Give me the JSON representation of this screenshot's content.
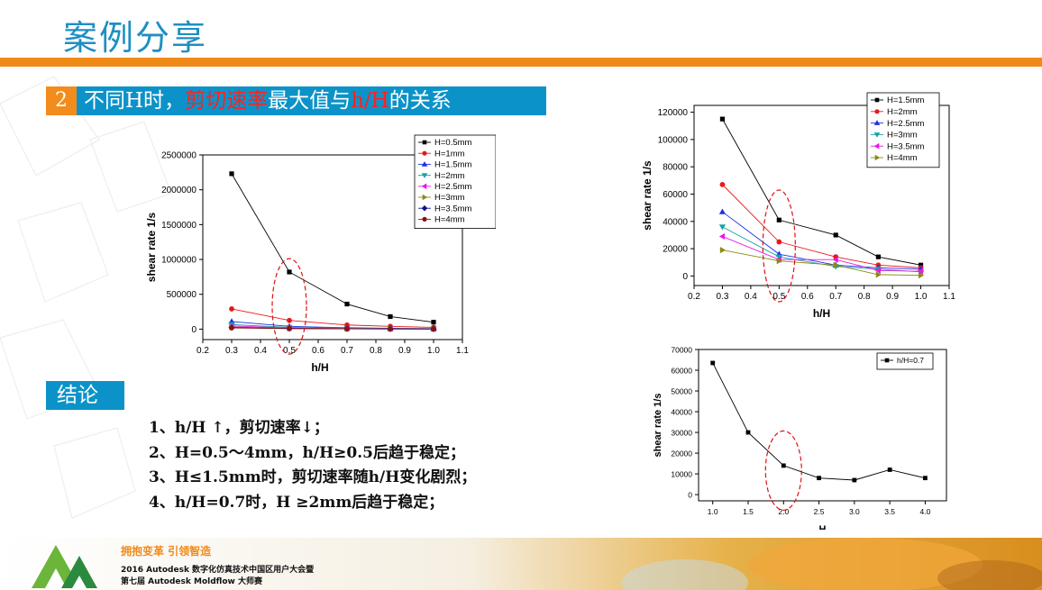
{
  "slide": {
    "title": "案例分享",
    "section_number": "2",
    "section_title_before": "不同H时，",
    "section_title_highlight": "剪切速率",
    "section_title_middle": "最大值与",
    "section_title_highlight2": "h/H",
    "section_title_after": "的关系",
    "conclusion_header": "结论",
    "conclusions": [
      "1、h/H ↑，剪切速率↓；",
      "2、H=0.5～4mm，h/H≥0.5后趋于稳定；",
      "3、H≤1.5mm时，剪切速率随h/H变化剧烈；",
      "4、h/H=0.7时，H ≥2mm后趋于稳定；"
    ],
    "footer_slogan": "拥抱变革  引领智造",
    "footer_line1": "2016 Autodesk 数字化仿真技术中国区用户大会暨",
    "footer_line2": "第七届 Autodesk Moldflow 大师赛",
    "accent_color": "#f08a17",
    "header_blue": "#0b93c9",
    "title_blue": "#1e8fc3"
  },
  "chart_data": [
    {
      "type": "line",
      "xlabel": "h/H",
      "ylabel": "shear rate  1/s",
      "xlim": [
        0.2,
        1.1
      ],
      "ylim": [
        -150000,
        2500000
      ],
      "xticks": [
        "0.2",
        "0.3",
        "0.4",
        "0.5",
        "0.6",
        "0.7",
        "0.8",
        "0.9",
        "1.0",
        "1.1"
      ],
      "yticks": [
        "0",
        "500000",
        "1000000",
        "1500000",
        "2000000",
        "2500000"
      ],
      "x": [
        0.3,
        0.5,
        0.7,
        0.85,
        1.0
      ],
      "legend_position": "top-right",
      "highlight_x": 0.5,
      "series": [
        {
          "name": "H=0.5mm",
          "color": "#000000",
          "marker": "square",
          "values": [
            2230000,
            820000,
            360000,
            180000,
            100000
          ]
        },
        {
          "name": "H=1mm",
          "color": "#e8191a",
          "marker": "circle",
          "values": [
            290000,
            125000,
            60000,
            40000,
            25000
          ]
        },
        {
          "name": "H=1.5mm",
          "color": "#1f2fe0",
          "marker": "triangle-up",
          "values": [
            110000,
            40000,
            20000,
            12000,
            8000
          ]
        },
        {
          "name": "H=2mm",
          "color": "#17a3a3",
          "marker": "triangle-down",
          "values": [
            65000,
            25000,
            12000,
            8000,
            5000
          ]
        },
        {
          "name": "H=2.5mm",
          "color": "#e61ae6",
          "marker": "triangle-left",
          "values": [
            45000,
            17000,
            9000,
            6000,
            4000
          ]
        },
        {
          "name": "H=3mm",
          "color": "#8a8a17",
          "marker": "triangle-right",
          "values": [
            30000,
            13000,
            7000,
            4000,
            3000
          ]
        },
        {
          "name": "H=3.5mm",
          "color": "#12128a",
          "marker": "diamond",
          "values": [
            22000,
            10000,
            5000,
            3000,
            2000
          ]
        },
        {
          "name": "H=4mm",
          "color": "#8a1212",
          "marker": "circle",
          "values": [
            18000,
            8000,
            4000,
            2500,
            1500
          ]
        }
      ]
    },
    {
      "type": "line",
      "xlabel": "h/H",
      "ylabel": "shear rate  1/s",
      "xlim": [
        0.2,
        1.1
      ],
      "ylim": [
        -7000,
        125000
      ],
      "xticks": [
        "0.2",
        "0.3",
        "0.4",
        "0.5",
        "0.6",
        "0.7",
        "0.8",
        "0.9",
        "1.0",
        "1.1"
      ],
      "yticks": [
        "0",
        "20000",
        "40000",
        "60000",
        "80000",
        "100000",
        "120000"
      ],
      "x": [
        0.3,
        0.5,
        0.7,
        0.85,
        1.0
      ],
      "legend_position": "top-right",
      "highlight_x": 0.5,
      "series": [
        {
          "name": "H=1.5mm",
          "color": "#000000",
          "marker": "square",
          "values": [
            115000,
            41000,
            30000,
            14000,
            8000
          ]
        },
        {
          "name": "H=2mm",
          "color": "#e8191a",
          "marker": "circle",
          "values": [
            67000,
            25000,
            14000,
            8000,
            6000
          ]
        },
        {
          "name": "H=2.5mm",
          "color": "#1f2fe0",
          "marker": "triangle-up",
          "values": [
            47000,
            16000,
            8000,
            6000,
            5000
          ]
        },
        {
          "name": "H=3mm",
          "color": "#17a3a3",
          "marker": "triangle-down",
          "values": [
            36000,
            14000,
            7000,
            5000,
            3000
          ]
        },
        {
          "name": "H=3.5mm",
          "color": "#e61ae6",
          "marker": "triangle-left",
          "values": [
            29000,
            12000,
            12000,
            4000,
            3500
          ]
        },
        {
          "name": "H=4mm",
          "color": "#8a8a17",
          "marker": "triangle-right",
          "values": [
            19000,
            11000,
            8000,
            1000,
            500
          ]
        }
      ]
    },
    {
      "type": "line",
      "xlabel": "H",
      "ylabel": "shear rate  1/s",
      "xlim": [
        0.8,
        4.3
      ],
      "ylim": [
        -3000,
        70000
      ],
      "xticks": [
        "1.0",
        "1.5",
        "2.0",
        "2.5",
        "3.0",
        "3.5",
        "4.0"
      ],
      "yticks": [
        "0",
        "10000",
        "20000",
        "30000",
        "40000",
        "50000",
        "60000",
        "70000"
      ],
      "x": [
        1.0,
        1.5,
        2.0,
        2.5,
        3.0,
        3.5,
        4.0
      ],
      "legend_position": "top-right",
      "highlight_x": 2.0,
      "series": [
        {
          "name": "h/H=0.7",
          "color": "#000000",
          "marker": "square",
          "values": [
            63500,
            30000,
            14000,
            8000,
            7000,
            12000,
            8000
          ]
        }
      ]
    }
  ]
}
